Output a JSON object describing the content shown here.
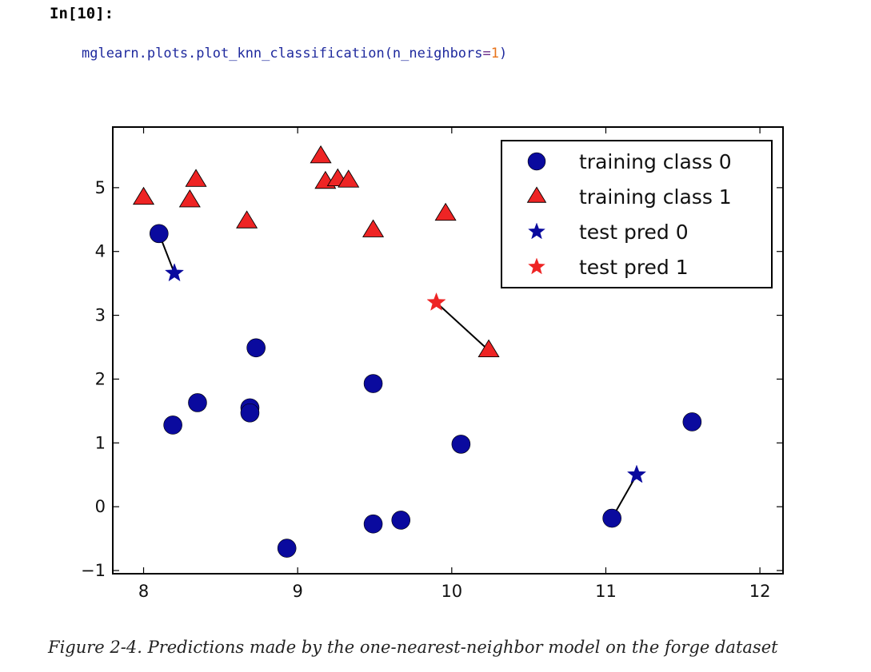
{
  "cell": {
    "label": "In[10]:",
    "code": {
      "prefix": "mglearn.plots.plot_knn_classification(n_neighbors",
      "operator": "=",
      "number": "1",
      "suffix": ")"
    }
  },
  "caption": "Figure 2-4. Predictions made by the one-nearest-neighbor model on the forge dataset",
  "colors": {
    "class0": "#0a0a9e",
    "class1": "#ee2424",
    "axis": "#000000"
  },
  "chart_data": {
    "type": "scatter",
    "title": "",
    "xlabel": "",
    "ylabel": "",
    "xlim": [
      7.8,
      12.15
    ],
    "ylim": [
      -1.05,
      5.95
    ],
    "x_ticks": [
      8,
      9,
      10,
      11,
      12
    ],
    "y_ticks": [
      -1,
      0,
      1,
      2,
      3,
      4,
      5
    ],
    "grid": false,
    "legend_position": "upper right",
    "legend": [
      {
        "label": "training class 0",
        "marker": "circle",
        "color": "#0a0a9e"
      },
      {
        "label": "training class 1",
        "marker": "triangle",
        "color": "#ee2424"
      },
      {
        "label": "test pred 0",
        "marker": "star",
        "color": "#0a0a9e"
      },
      {
        "label": "test pred 1",
        "marker": "star",
        "color": "#ee2424"
      }
    ],
    "series": [
      {
        "name": "training class 0",
        "marker": "circle",
        "points": [
          [
            8.1,
            4.28
          ],
          [
            8.19,
            1.28
          ],
          [
            8.35,
            1.63
          ],
          [
            8.69,
            1.55
          ],
          [
            8.69,
            1.47
          ],
          [
            8.73,
            2.49
          ],
          [
            8.93,
            -0.65
          ],
          [
            9.49,
            1.93
          ],
          [
            9.49,
            -0.27
          ],
          [
            9.67,
            -0.21
          ],
          [
            10.06,
            0.98
          ],
          [
            11.04,
            -0.18
          ],
          [
            11.56,
            1.33
          ]
        ]
      },
      {
        "name": "training class 1",
        "marker": "triangle",
        "points": [
          [
            8.0,
            4.84
          ],
          [
            8.3,
            4.8
          ],
          [
            8.34,
            5.12
          ],
          [
            8.67,
            4.47
          ],
          [
            9.15,
            5.49
          ],
          [
            9.18,
            5.09
          ],
          [
            9.26,
            5.13
          ],
          [
            9.33,
            5.11
          ],
          [
            9.49,
            4.33
          ],
          [
            9.96,
            4.59
          ],
          [
            10.24,
            2.45
          ]
        ]
      },
      {
        "name": "test pred 0",
        "marker": "star",
        "points": [
          [
            8.2,
            3.66
          ],
          [
            11.2,
            0.5
          ]
        ]
      },
      {
        "name": "test pred 1",
        "marker": "star",
        "points": [
          [
            9.9,
            3.2
          ]
        ]
      }
    ],
    "neighbor_links": [
      {
        "from": [
          8.2,
          3.66
        ],
        "to": [
          8.1,
          4.28
        ]
      },
      {
        "from": [
          9.9,
          3.2
        ],
        "to": [
          10.24,
          2.45
        ]
      },
      {
        "from": [
          11.2,
          0.5
        ],
        "to": [
          11.04,
          -0.18
        ]
      }
    ]
  }
}
